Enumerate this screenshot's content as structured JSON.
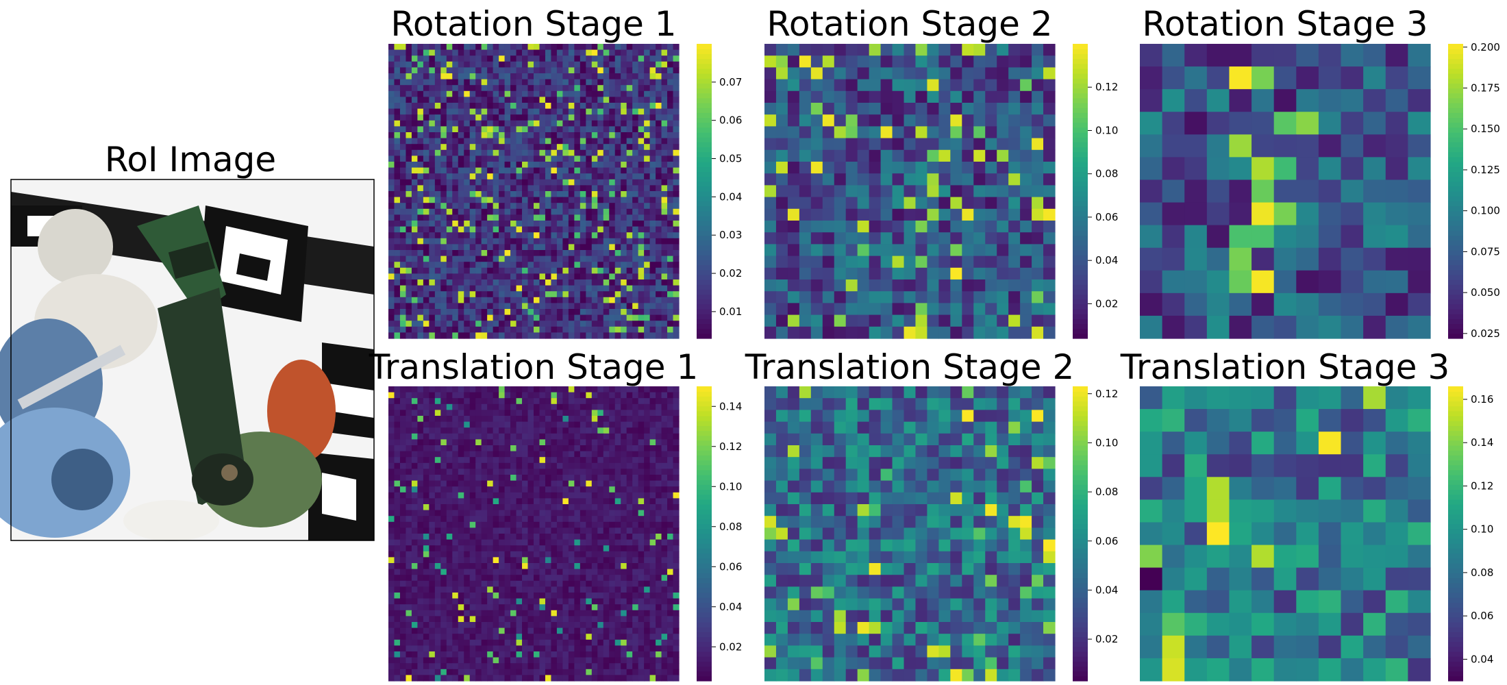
{
  "figure": {
    "roi": {
      "title": "RoI Image"
    }
  },
  "chart_data": [
    {
      "type": "heatmap",
      "title": "Rotation Stage 1",
      "grid": 50,
      "vmin": 0.003,
      "vmax": 0.08,
      "colorbar_ticks": [
        "0.01",
        "0.02",
        "0.03",
        "0.04",
        "0.05",
        "0.06",
        "0.07"
      ],
      "colorbar_tick_values": [
        0.01,
        0.02,
        0.03,
        0.04,
        0.05,
        0.06,
        0.07
      ],
      "seed": 11,
      "base": 0.014,
      "spread": 0.012,
      "spikes": 0.1,
      "spike_level": 0.055,
      "colormap": "viridis"
    },
    {
      "type": "heatmap",
      "title": "Rotation Stage 2",
      "grid": 25,
      "vmin": 0.004,
      "vmax": 0.14,
      "colorbar_ticks": [
        "0.02",
        "0.04",
        "0.06",
        "0.08",
        "0.10",
        "0.12"
      ],
      "colorbar_tick_values": [
        0.02,
        0.04,
        0.06,
        0.08,
        0.1,
        0.12
      ],
      "seed": 23,
      "base": 0.04,
      "spread": 0.03,
      "spikes": 0.08,
      "spike_level": 0.105,
      "colormap": "viridis"
    },
    {
      "type": "heatmap",
      "title": "Rotation Stage 3",
      "grid": 13,
      "vmin": 0.022,
      "vmax": 0.202,
      "colorbar_ticks": [
        "0.025",
        "0.050",
        "0.075",
        "0.100",
        "0.125",
        "0.150",
        "0.175",
        "0.200"
      ],
      "colorbar_tick_values": [
        0.025,
        0.05,
        0.075,
        0.1,
        0.125,
        0.15,
        0.175,
        0.2
      ],
      "seed": 37,
      "base": 0.07,
      "spread": 0.04,
      "spikes": 0.0,
      "spike_level": 0.0,
      "colormap": "viridis"
    },
    {
      "type": "heatmap",
      "title": "Translation Stage 1",
      "grid": 50,
      "vmin": 0.003,
      "vmax": 0.15,
      "colorbar_ticks": [
        "0.02",
        "0.04",
        "0.06",
        "0.08",
        "0.10",
        "0.12",
        "0.14"
      ],
      "colorbar_tick_values": [
        0.02,
        0.04,
        0.06,
        0.08,
        0.1,
        0.12,
        0.14
      ],
      "seed": 51,
      "base": 0.012,
      "spread": 0.008,
      "spikes": 0.05,
      "spike_level": 0.07,
      "colormap": "viridis"
    },
    {
      "type": "heatmap",
      "title": "Translation Stage 2",
      "grid": 25,
      "vmin": 0.003,
      "vmax": 0.123,
      "colorbar_ticks": [
        "0.02",
        "0.04",
        "0.06",
        "0.08",
        "0.10",
        "0.12"
      ],
      "colorbar_tick_values": [
        0.02,
        0.04,
        0.06,
        0.08,
        0.1,
        0.12
      ],
      "seed": 67,
      "base": 0.045,
      "spread": 0.028,
      "spikes": 0.06,
      "spike_level": 0.085,
      "colormap": "viridis"
    },
    {
      "type": "heatmap",
      "title": "Translation Stage 3",
      "grid": 13,
      "vmin": 0.03,
      "vmax": 0.166,
      "colorbar_ticks": [
        "0.04",
        "0.06",
        "0.08",
        "0.10",
        "0.12",
        "0.14",
        "0.16"
      ],
      "colorbar_tick_values": [
        0.04,
        0.06,
        0.08,
        0.1,
        0.12,
        0.14,
        0.16
      ],
      "seed": 83,
      "base": 0.085,
      "spread": 0.035,
      "spikes": 0.0,
      "spike_level": 0.0,
      "colormap": "viridis"
    }
  ],
  "stage3_rotation_hotspots": [
    [
      1,
      4,
      0.201
    ],
    [
      1,
      5,
      0.165
    ],
    [
      4,
      4,
      0.175
    ],
    [
      5,
      5,
      0.18
    ],
    [
      7,
      5,
      0.198
    ],
    [
      7,
      6,
      0.165
    ],
    [
      8,
      4,
      0.15
    ],
    [
      8,
      5,
      0.15
    ],
    [
      9,
      4,
      0.165
    ],
    [
      10,
      4,
      0.16
    ],
    [
      10,
      5,
      0.2
    ],
    [
      3,
      6,
      0.155
    ],
    [
      3,
      7,
      0.17
    ],
    [
      6,
      5,
      0.16
    ],
    [
      5,
      6,
      0.145
    ]
  ],
  "stage3_translation_hotspots": [
    [
      0,
      10,
      0.148
    ],
    [
      2,
      8,
      0.165
    ],
    [
      4,
      3,
      0.15
    ],
    [
      5,
      3,
      0.15
    ],
    [
      6,
      3,
      0.166
    ],
    [
      7,
      5,
      0.15
    ],
    [
      7,
      0,
      0.14
    ],
    [
      11,
      1,
      0.155
    ],
    [
      12,
      1,
      0.158
    ],
    [
      8,
      0,
      0.03
    ],
    [
      10,
      1,
      0.13
    ]
  ]
}
